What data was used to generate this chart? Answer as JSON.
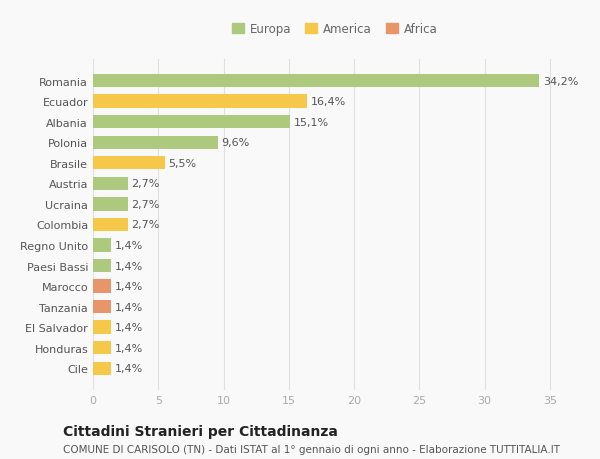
{
  "categories": [
    "Cile",
    "Honduras",
    "El Salvador",
    "Tanzania",
    "Marocco",
    "Paesi Bassi",
    "Regno Unito",
    "Colombia",
    "Ucraina",
    "Austria",
    "Brasile",
    "Polonia",
    "Albania",
    "Ecuador",
    "Romania"
  ],
  "values": [
    1.4,
    1.4,
    1.4,
    1.4,
    1.4,
    1.4,
    1.4,
    2.7,
    2.7,
    2.7,
    5.5,
    9.6,
    15.1,
    16.4,
    34.2
  ],
  "colors": [
    "#f5c84a",
    "#f5c84a",
    "#f5c84a",
    "#e8956a",
    "#e8956a",
    "#adc97e",
    "#adc97e",
    "#f5c84a",
    "#adc97e",
    "#adc97e",
    "#f5c84a",
    "#adc97e",
    "#adc97e",
    "#f5c84a",
    "#adc97e"
  ],
  "bar_labels": [
    "1,4%",
    "1,4%",
    "1,4%",
    "1,4%",
    "1,4%",
    "1,4%",
    "1,4%",
    "2,7%",
    "2,7%",
    "2,7%",
    "5,5%",
    "9,6%",
    "15,1%",
    "16,4%",
    "34,2%"
  ],
  "legend_labels": [
    "Europa",
    "America",
    "Africa"
  ],
  "legend_colors": [
    "#adc97e",
    "#f5c84a",
    "#e8956a"
  ],
  "title": "Cittadini Stranieri per Cittadinanza",
  "subtitle": "COMUNE DI CARISOLO (TN) - Dati ISTAT al 1° gennaio di ogni anno - Elaborazione TUTTITALIA.IT",
  "xlim": [
    0,
    37
  ],
  "xticks": [
    0,
    5,
    10,
    15,
    20,
    25,
    30,
    35
  ],
  "background_color": "#f9f9f9",
  "grid_color": "#e0e0e0",
  "bar_height": 0.65,
  "label_fontsize": 8,
  "ytick_fontsize": 8,
  "xtick_fontsize": 8,
  "title_fontsize": 10,
  "subtitle_fontsize": 7.5
}
